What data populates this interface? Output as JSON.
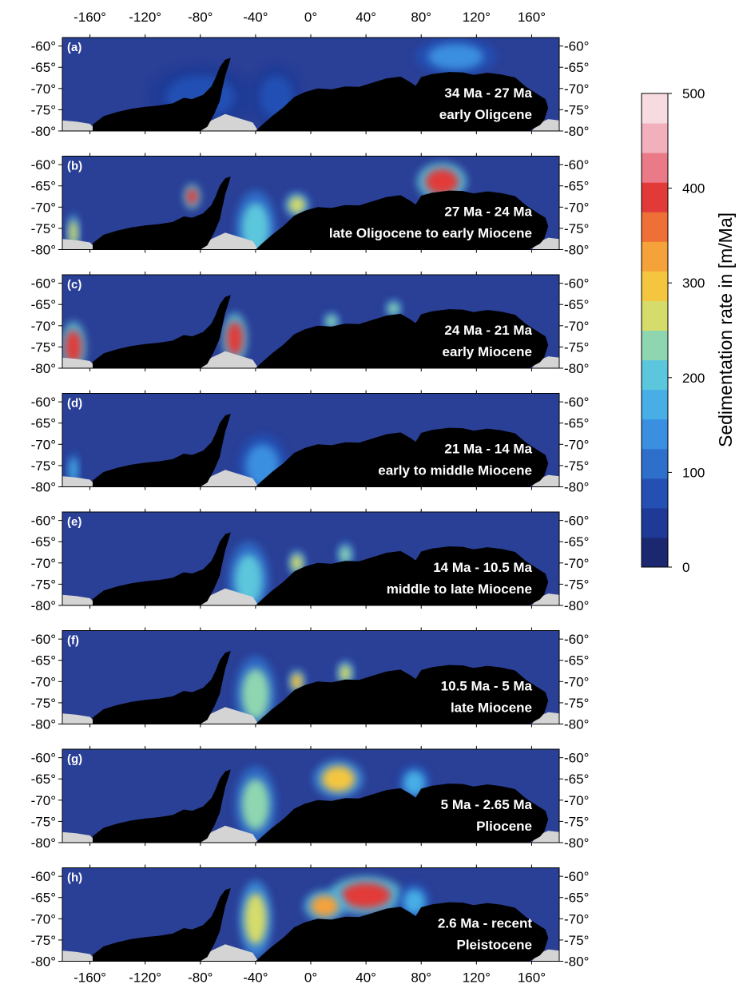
{
  "x_axis": {
    "tick_labels": [
      "-160°",
      "-120°",
      "-80°",
      "-40°",
      "0°",
      "40°",
      "80°",
      "120°",
      "160°"
    ],
    "tick_values": [
      -160,
      -120,
      -80,
      -40,
      0,
      40,
      80,
      120,
      160
    ],
    "range": [
      -180,
      180
    ]
  },
  "y_axis": {
    "tick_labels": [
      "-60°",
      "-65°",
      "-70°",
      "-75°",
      "-80°"
    ],
    "tick_values": [
      -60,
      -65,
      -70,
      -75,
      -80
    ],
    "range": [
      -80,
      -58
    ]
  },
  "panels": [
    {
      "label": "(a)",
      "period": "34 Ma - 27 Ma",
      "epoch": "early Oligcene",
      "deposits": [
        {
          "lon": 105,
          "lat": -62.5,
          "rate": 150,
          "rx": 20,
          "ry": 3
        },
        {
          "lon": -80,
          "lat": -72,
          "rate": 70,
          "rx": 25,
          "ry": 5
        },
        {
          "lon": -25,
          "lat": -72,
          "rate": 90,
          "rx": 12,
          "ry": 5
        }
      ]
    },
    {
      "label": "(b)",
      "period": "27 Ma - 24 Ma",
      "epoch": "late Oligocene to early Miocene",
      "deposits": [
        {
          "lon": -86,
          "lat": -67.5,
          "rate": 390,
          "rx": 4,
          "ry": 2
        },
        {
          "lon": -172,
          "lat": -76,
          "rate": 280,
          "rx": 3,
          "ry": 3
        },
        {
          "lon": -10,
          "lat": -69.5,
          "rate": 260,
          "rx": 6,
          "ry": 2
        },
        {
          "lon": 95,
          "lat": -64,
          "rate": 380,
          "rx": 12,
          "ry": 3
        },
        {
          "lon": -40,
          "lat": -75,
          "rate": 200,
          "rx": 10,
          "ry": 6
        }
      ]
    },
    {
      "label": "(c)",
      "period": "24 Ma - 21 Ma",
      "epoch": "early Miocene",
      "deposits": [
        {
          "lon": -172,
          "lat": -75,
          "rate": 390,
          "rx": 6,
          "ry": 4
        },
        {
          "lon": -55,
          "lat": -73,
          "rate": 400,
          "rx": 6,
          "ry": 4
        },
        {
          "lon": 15,
          "lat": -69,
          "rate": 240,
          "rx": 4,
          "ry": 1.5
        },
        {
          "lon": 60,
          "lat": -66,
          "rate": 220,
          "rx": 4,
          "ry": 1.5
        }
      ]
    },
    {
      "label": "(d)",
      "period": "21 Ma - 14 Ma",
      "epoch": "early to middle Miocene",
      "deposits": [
        {
          "lon": -172,
          "lat": -76,
          "rate": 180,
          "rx": 3,
          "ry": 3
        },
        {
          "lon": -35,
          "lat": -75,
          "rate": 140,
          "rx": 12,
          "ry": 5
        }
      ]
    },
    {
      "label": "(e)",
      "period": "14 Ma - 10.5 Ma",
      "epoch": "middle to late Miocene",
      "deposits": [
        {
          "lon": -10,
          "lat": -70,
          "rate": 280,
          "rx": 4,
          "ry": 2
        },
        {
          "lon": 25,
          "lat": -68,
          "rate": 240,
          "rx": 4,
          "ry": 2
        },
        {
          "lon": -45,
          "lat": -74,
          "rate": 210,
          "rx": 10,
          "ry": 6
        }
      ]
    },
    {
      "label": "(f)",
      "period": "10.5 Ma -  5 Ma",
      "epoch": "late Miocene",
      "deposits": [
        {
          "lon": -10,
          "lat": -70,
          "rate": 290,
          "rx": 4,
          "ry": 2
        },
        {
          "lon": 25,
          "lat": -68,
          "rate": 250,
          "rx": 4,
          "ry": 2
        },
        {
          "lon": -40,
          "lat": -73,
          "rate": 240,
          "rx": 10,
          "ry": 6
        }
      ]
    },
    {
      "label": "(g)",
      "period": "5 Ma - 2.65 Ma",
      "epoch": "Pliocene",
      "deposits": [
        {
          "lon": 20,
          "lat": -65,
          "rate": 310,
          "rx": 12,
          "ry": 3
        },
        {
          "lon": -40,
          "lat": -71,
          "rate": 220,
          "rx": 10,
          "ry": 6
        },
        {
          "lon": 75,
          "lat": -66,
          "rate": 160,
          "rx": 8,
          "ry": 3
        }
      ]
    },
    {
      "label": "(h)",
      "period": "2.6 Ma - recent",
      "epoch": "Pleistocene",
      "deposits": [
        {
          "lon": 40,
          "lat": -64.5,
          "rate": 380,
          "rx": 18,
          "ry": 3
        },
        {
          "lon": 10,
          "lat": -67,
          "rate": 320,
          "rx": 10,
          "ry": 2.5
        },
        {
          "lon": -40,
          "lat": -70,
          "rate": 250,
          "rx": 8,
          "ry": 6
        },
        {
          "lon": 75,
          "lat": -66,
          "rate": 160,
          "rx": 8,
          "ry": 3
        }
      ]
    }
  ],
  "colorbar": {
    "title": "Sedimentation rate in [m/Ma]",
    "tick_labels": [
      "500",
      "400",
      "300",
      "200",
      "100",
      "0"
    ],
    "tick_values": [
      500,
      400,
      300,
      200,
      100,
      0
    ],
    "range": [
      0,
      500
    ],
    "colors": [
      "#1b2870",
      "#1f3a96",
      "#2450b4",
      "#2f6fcc",
      "#3a8fe0",
      "#47aee6",
      "#5cc6dc",
      "#8ed6b0",
      "#d6dc6a",
      "#f4c640",
      "#f5a23a",
      "#ee7036",
      "#e23a38",
      "#ea7a88",
      "#f2b0bc",
      "#f8dbe0"
    ]
  },
  "colors": {
    "ocean_background": "#2a3f96",
    "land": "#000000",
    "ice_shelf": "#d4d4d4"
  }
}
